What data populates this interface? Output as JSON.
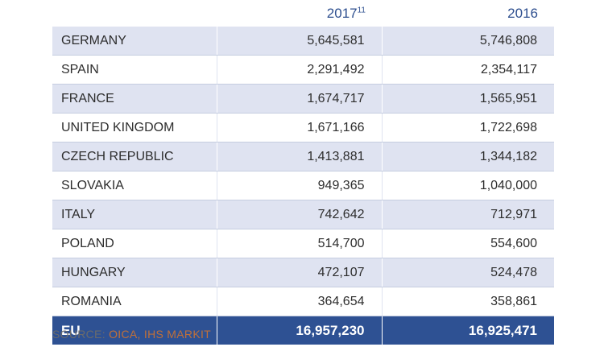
{
  "table": {
    "headers": {
      "col1": "",
      "col2_year": "2017",
      "col2_sup": "11",
      "col3": "2016"
    },
    "rows": [
      {
        "country": "GERMANY",
        "y2017": "5,645,581",
        "y2016": "5,746,808"
      },
      {
        "country": "SPAIN",
        "y2017": "2,291,492",
        "y2016": "2,354,117"
      },
      {
        "country": "FRANCE",
        "y2017": "1,674,717",
        "y2016": "1,565,951"
      },
      {
        "country": "UNITED KINGDOM",
        "y2017": "1,671,166",
        "y2016": "1,722,698"
      },
      {
        "country": "CZECH REPUBLIC",
        "y2017": "1,413,881",
        "y2016": "1,344,182"
      },
      {
        "country": "SLOVAKIA",
        "y2017": "949,365",
        "y2016": "1,040,000"
      },
      {
        "country": "ITALY",
        "y2017": "742,642",
        "y2016": "712,971"
      },
      {
        "country": "POLAND",
        "y2017": "514,700",
        "y2016": "554,600"
      },
      {
        "country": "HUNGARY",
        "y2017": "472,107",
        "y2016": "524,478"
      },
      {
        "country": "ROMANIA",
        "y2017": "364,654",
        "y2016": "358,861"
      }
    ],
    "total": {
      "country": "EU",
      "y2017": "16,957,230",
      "y2016": "16,925,471"
    }
  },
  "source": {
    "prefix": "SOURCE: ",
    "orgs": "OICA, IHS MARKIT"
  },
  "colors": {
    "header_text": "#2e4f8f",
    "stripe": "#dfe3f1",
    "total_bg": "#2e5193",
    "source_orgs": "#c0703a"
  }
}
